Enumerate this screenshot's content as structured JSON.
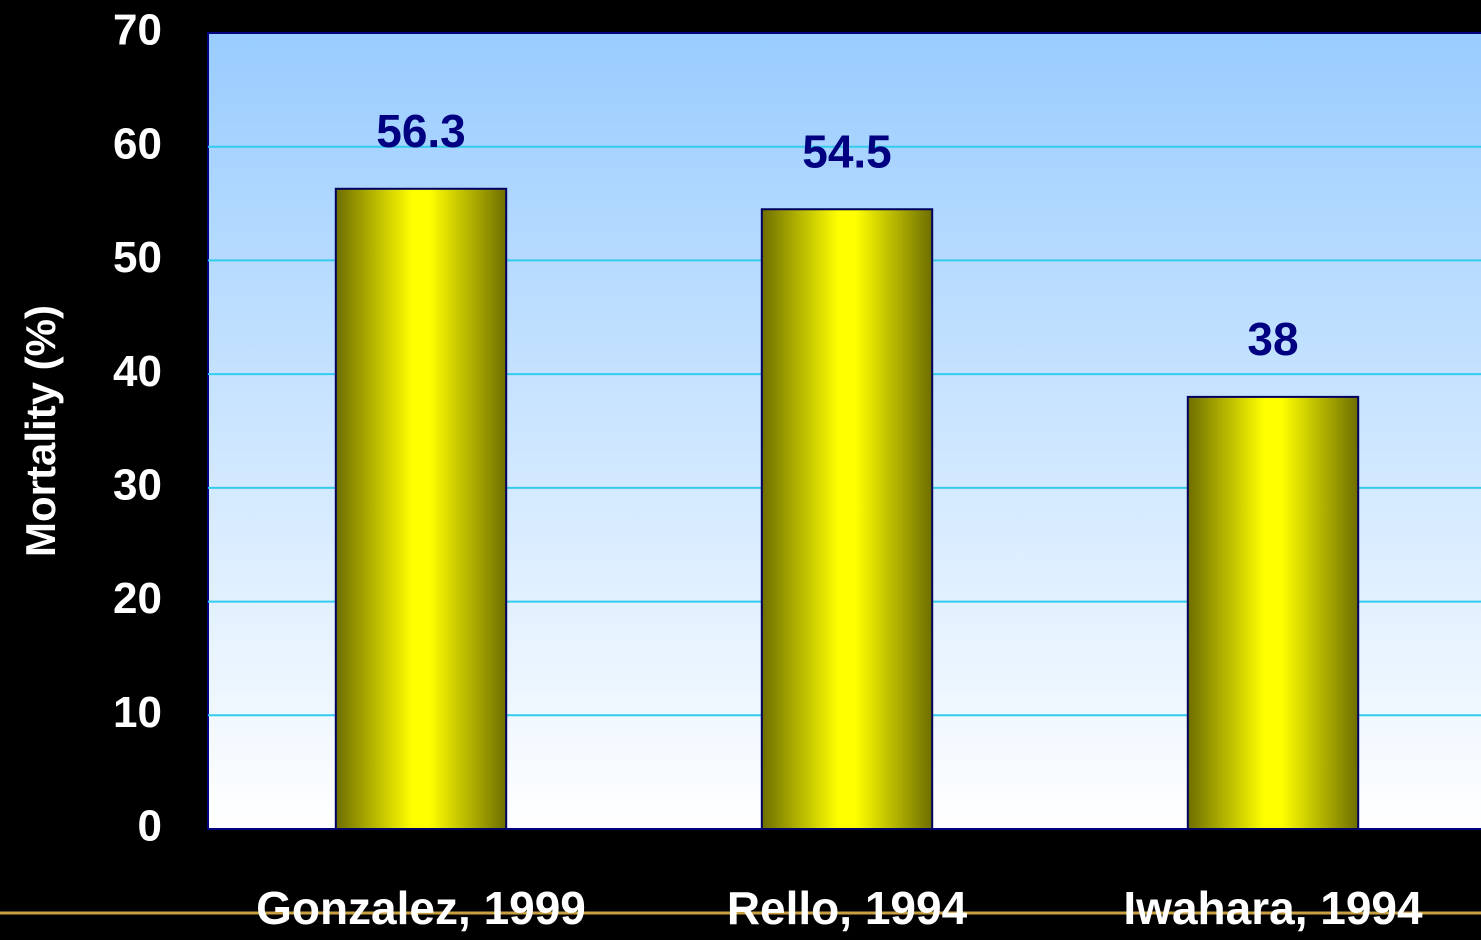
{
  "chart_data": {
    "type": "bar",
    "ylabel": "Mortality (%)",
    "categories": [
      "Gonzalez, 1999",
      "Rello, 1994",
      "Iwahara, 1994"
    ],
    "values": [
      56.3,
      54.5,
      38
    ],
    "color": "#ffff00",
    "ylim": [
      0,
      70
    ],
    "yticks": [
      0,
      10,
      20,
      30,
      40,
      50,
      60,
      70
    ],
    "grid": true
  }
}
